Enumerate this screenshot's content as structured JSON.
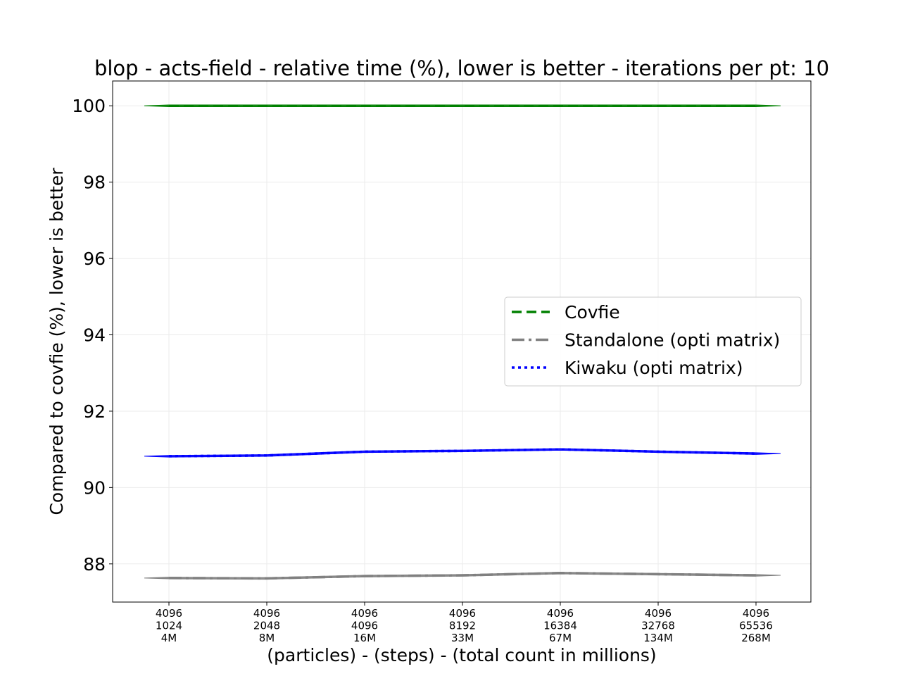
{
  "chart_data": {
    "type": "line",
    "title": "blop - acts-field - relative time (%), lower is better - iterations per pt: 10",
    "xlabel": "(particles) - (steps) - (total count in millions)",
    "ylabel": "Compared to covfie (%), lower is better",
    "categories": [
      [
        "4096",
        "1024",
        "4M"
      ],
      [
        "4096",
        "2048",
        "8M"
      ],
      [
        "4096",
        "4096",
        "16M"
      ],
      [
        "4096",
        "8192",
        "33M"
      ],
      [
        "4096",
        "16384",
        "67M"
      ],
      [
        "4096",
        "32768",
        "134M"
      ],
      [
        "4096",
        "65536",
        "268M"
      ]
    ],
    "yticks": [
      "88",
      "90",
      "92",
      "94",
      "96",
      "98",
      "100"
    ],
    "ylim": [
      87.0,
      100.65
    ],
    "grid": true,
    "legend_position": "center-right",
    "series": [
      {
        "name": "Covfie",
        "color": "#008000",
        "dash": "dashed",
        "values": [
          100.0,
          100.0,
          100.0,
          100.0,
          100.0,
          100.0,
          100.0
        ]
      },
      {
        "name": "Standalone (opti matrix)",
        "color": "#808080",
        "dash": "dashdot",
        "values": [
          87.63,
          87.62,
          87.68,
          87.7,
          87.76,
          87.73,
          87.7
        ]
      },
      {
        "name": "Kiwaku (opti matrix)",
        "color": "#0000ff",
        "dash": "dotted",
        "values": [
          90.82,
          90.84,
          90.94,
          90.96,
          91.0,
          90.94,
          90.89
        ]
      }
    ]
  }
}
